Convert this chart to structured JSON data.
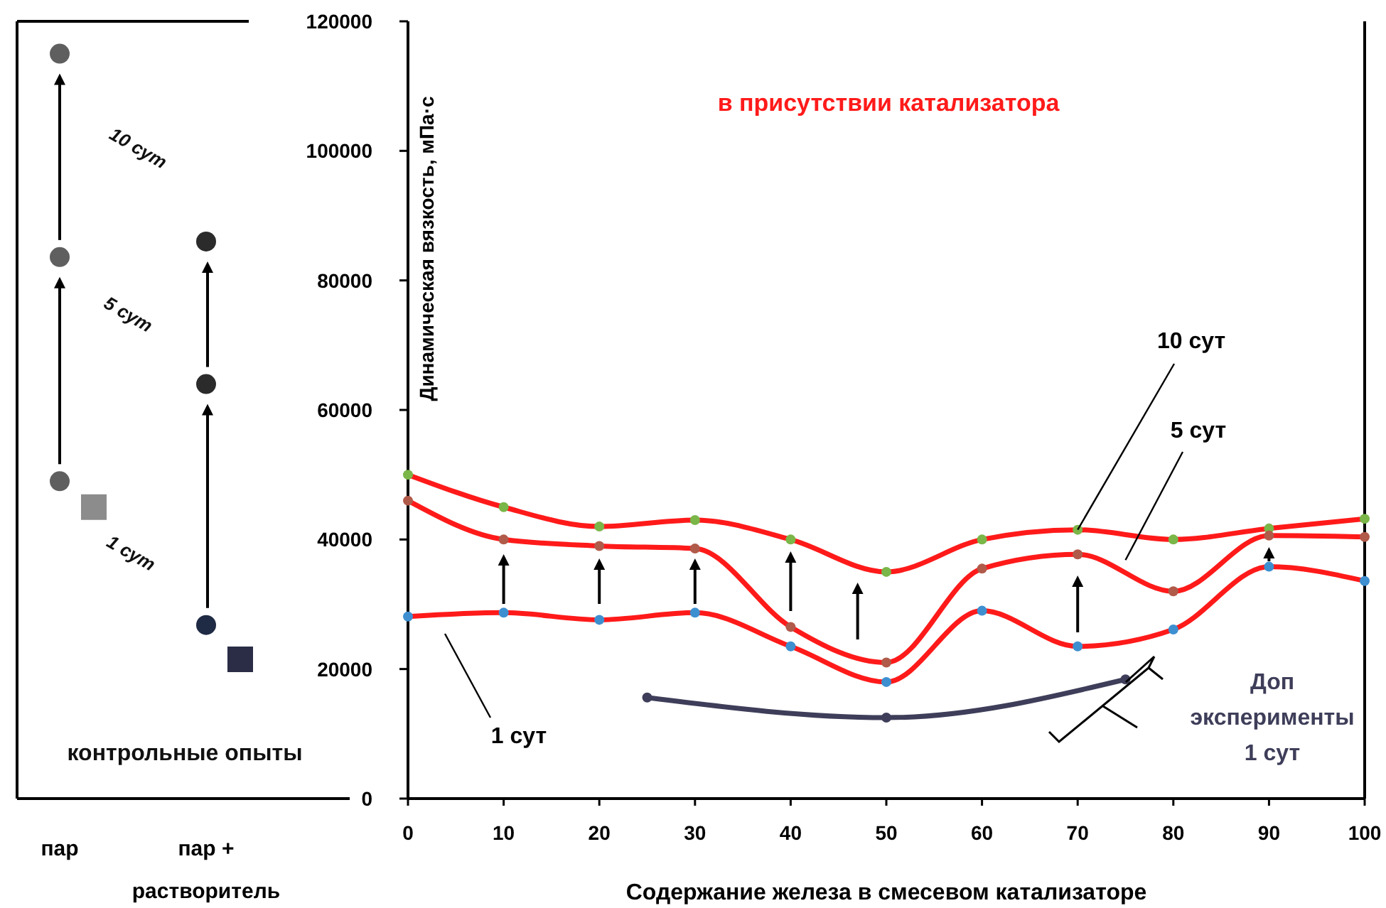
{
  "chart_data": [
    {
      "type": "scatter",
      "categories": [
        "пар",
        "пар + растворитель"
      ],
      "ylim": [
        0,
        120000
      ],
      "tick_labels": "x",
      "annotations": [
        "10 сут",
        "5 сут",
        "1 сут",
        "контрольные опыты"
      ],
      "series": [
        {
          "marker": "circle",
          "values": [
            49000,
            26800
          ],
          "colors": [
            "#5f5f5f",
            "#1f2a44"
          ]
        },
        {
          "marker": "circle",
          "values": [
            83600,
            64000
          ],
          "colors": [
            "#5f5f5f",
            "#2b2b2b"
          ]
        },
        {
          "marker": "circle",
          "values": [
            115000,
            86000
          ],
          "colors": [
            "#5f5f5f",
            "#2b2b2b"
          ]
        },
        {
          "marker": "square",
          "values": [
            45000,
            21500
          ],
          "colors": [
            "#8c8c8c",
            "#2a2d45"
          ]
        }
      ]
    },
    {
      "type": "line",
      "title": "в присутствии катализатора",
      "xlabel": "Содержание железа в смесевом катализаторе",
      "ylabel": "Динамическая вязкость, мПа·с",
      "xlim": [
        0,
        100
      ],
      "ylim": [
        0,
        120000
      ],
      "xticks": [
        0,
        10,
        20,
        30,
        40,
        50,
        60,
        70,
        80,
        90,
        100
      ],
      "yticks": [
        0,
        20000,
        40000,
        60000,
        80000,
        100000,
        120000
      ],
      "grid": false,
      "marker": "circle",
      "line_style": "solid",
      "series": [
        {
          "name": "10 сут",
          "color": "#ff1a1a",
          "colors": [
            "#7ab648",
            "#7ab648",
            "#7ab648",
            "#7ab648",
            "#7ab648",
            "#7ab648",
            "#7ab648",
            "#7ab648",
            "#7ab648",
            "#7ab648",
            "#7ab648"
          ],
          "x": [
            0,
            10,
            20,
            30,
            40,
            50,
            60,
            70,
            80,
            90,
            100
          ],
          "values": [
            50000,
            45000,
            42000,
            43000,
            40000,
            35000,
            40000,
            41500,
            40000,
            41700,
            43200
          ]
        },
        {
          "name": "5 сут",
          "color": "#ff1a1a",
          "colors": [
            "#b05a4a",
            "#b05a4a",
            "#b05a4a",
            "#b05a4a",
            "#b05a4a",
            "#b05a4a",
            "#b05a4a",
            "#b05a4a",
            "#b05a4a",
            "#b05a4a",
            "#b05a4a"
          ],
          "x": [
            0,
            10,
            20,
            30,
            40,
            50,
            60,
            70,
            80,
            90,
            100
          ],
          "values": [
            46000,
            40000,
            39000,
            38600,
            26500,
            21000,
            35500,
            37700,
            32000,
            40600,
            40400
          ]
        },
        {
          "name": "1 сут",
          "color": "#ff1a1a",
          "colors": [
            "#3d8fd0",
            "#3d8fd0",
            "#3d8fd0",
            "#3d8fd0",
            "#3d8fd0",
            "#3d8fd0",
            "#3d8fd0",
            "#3d8fd0",
            "#3d8fd0",
            "#3d8fd0",
            "#3d8fd0"
          ],
          "x": [
            0,
            10,
            20,
            30,
            40,
            50,
            60,
            70,
            80,
            90,
            100
          ],
          "values": [
            28100,
            28700,
            27600,
            28700,
            23500,
            18000,
            29000,
            23500,
            26100,
            35800,
            33600
          ]
        },
        {
          "name": "Доп эксперименты 1 сут",
          "color": "#3e3e5a",
          "x": [
            25,
            50,
            75
          ],
          "values": [
            15600,
            12500,
            18400
          ]
        }
      ]
    }
  ]
}
